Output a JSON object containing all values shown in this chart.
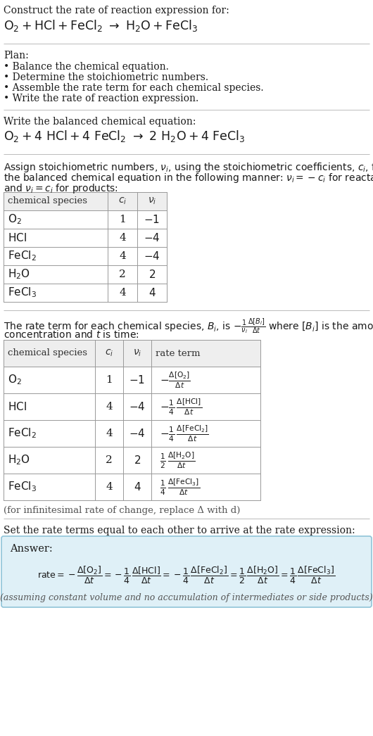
{
  "title_line1": "Construct the rate of reaction expression for:",
  "plan_header": "Plan:",
  "plan_items": [
    "• Balance the chemical equation.",
    "• Determine the stoichiometric numbers.",
    "• Assemble the rate term for each chemical species.",
    "• Write the rate of reaction expression."
  ],
  "balanced_header": "Write the balanced chemical equation:",
  "infinitesimal_note": "(for infinitesimal rate of change, replace Δ with d)",
  "section5_header": "Set the rate terms equal to each other to arrive at the rate expression:",
  "answer_label": "Answer:",
  "answer_note": "(assuming constant volume and no accumulation of intermediates or side products)",
  "bg_color": "#ffffff",
  "answer_box_bg": "#dff0f7",
  "answer_box_border": "#90c4d8",
  "text_color": "#1a1a1a",
  "gray_text": "#555555",
  "separator_color": "#bbbbbb",
  "table_border": "#999999",
  "table_header_bg": "#eeeeee",
  "species1": [
    "O₂",
    "HCl",
    "FeCl₂",
    "H₂O",
    "FeCl₃"
  ],
  "ci_vals": [
    "1",
    "4",
    "4",
    "2",
    "4"
  ],
  "nu_vals": [
    "−1",
    "−4",
    "−4",
    "2",
    "4"
  ]
}
